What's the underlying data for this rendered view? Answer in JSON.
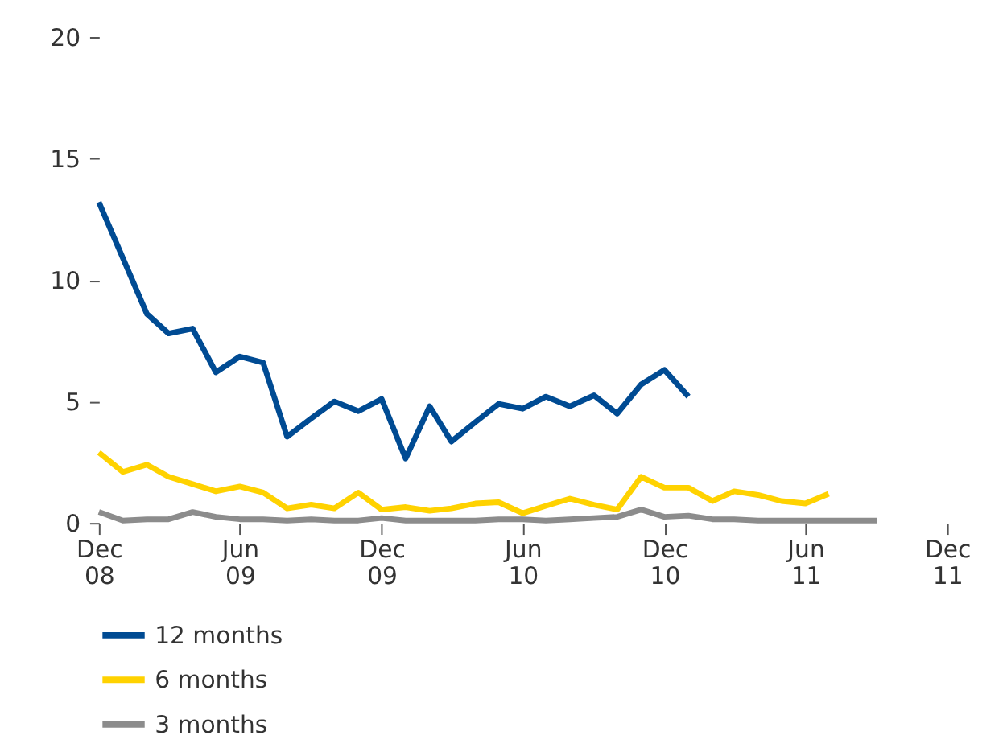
{
  "chart_data": {
    "type": "line",
    "xlim": [
      "2008-12",
      "2011-12"
    ],
    "xticks": [
      {
        "value": "2008-12",
        "label": "Dec 08"
      },
      {
        "value": "2009-06",
        "label": "Jun 09"
      },
      {
        "value": "2009-12",
        "label": "Dec 09"
      },
      {
        "value": "2010-06",
        "label": "Jun 10"
      },
      {
        "value": "2010-12",
        "label": "Dec 10"
      },
      {
        "value": "2011-06",
        "label": "Jun 11"
      },
      {
        "value": "2011-12",
        "label": "Dec 11"
      }
    ],
    "ylim": [
      0,
      20
    ],
    "yticks": [
      0,
      5,
      10,
      15,
      20
    ],
    "grid": false,
    "legend": "bottom",
    "line_style": "solid",
    "marker": "none",
    "x": [
      "2008-12",
      "2009-01",
      "2009-02",
      "2009-03",
      "2009-04",
      "2009-05",
      "2009-06",
      "2009-07",
      "2009-08",
      "2009-09",
      "2009-10",
      "2009-11",
      "2009-12",
      "2010-01",
      "2010-02",
      "2010-03",
      "2010-04",
      "2010-05",
      "2010-06",
      "2010-07",
      "2010-08",
      "2010-09",
      "2010-10",
      "2010-11",
      "2010-12",
      "2011-01",
      "2011-02",
      "2011-03",
      "2011-04",
      "2011-05",
      "2011-06",
      "2011-07",
      "2011-08",
      "2011-09"
    ],
    "series": [
      {
        "name": "12 months",
        "color": "#004b93",
        "values": [
          13.2,
          10.9,
          8.6,
          7.8,
          8.0,
          6.2,
          6.85,
          6.6,
          3.55,
          4.3,
          5.0,
          4.6,
          5.1,
          2.65,
          4.8,
          3.35,
          4.15,
          4.9,
          4.7,
          5.2,
          4.8,
          5.25,
          4.5,
          5.7,
          6.3,
          5.2,
          null,
          null,
          null,
          null,
          null,
          null,
          null,
          null
        ]
      },
      {
        "name": "6 months",
        "color": "#ffd200",
        "values": [
          2.9,
          2.1,
          2.4,
          1.9,
          1.6,
          1.3,
          1.5,
          1.25,
          0.6,
          0.75,
          0.6,
          1.25,
          0.55,
          0.65,
          0.5,
          0.6,
          0.8,
          0.85,
          0.4,
          0.7,
          1.0,
          0.75,
          0.55,
          1.9,
          1.45,
          1.45,
          0.9,
          1.3,
          1.15,
          0.9,
          0.8,
          1.2,
          null,
          null
        ]
      },
      {
        "name": "3 months",
        "color": "#8c8c8c",
        "values": [
          0.45,
          0.1,
          0.15,
          0.15,
          0.45,
          0.25,
          0.15,
          0.15,
          0.1,
          0.15,
          0.1,
          0.1,
          0.2,
          0.1,
          0.1,
          0.1,
          0.1,
          0.15,
          0.15,
          0.1,
          0.15,
          0.2,
          0.25,
          0.55,
          0.25,
          0.3,
          0.15,
          0.15,
          0.1,
          0.1,
          0.1,
          0.1,
          0.1,
          0.1
        ]
      }
    ]
  }
}
